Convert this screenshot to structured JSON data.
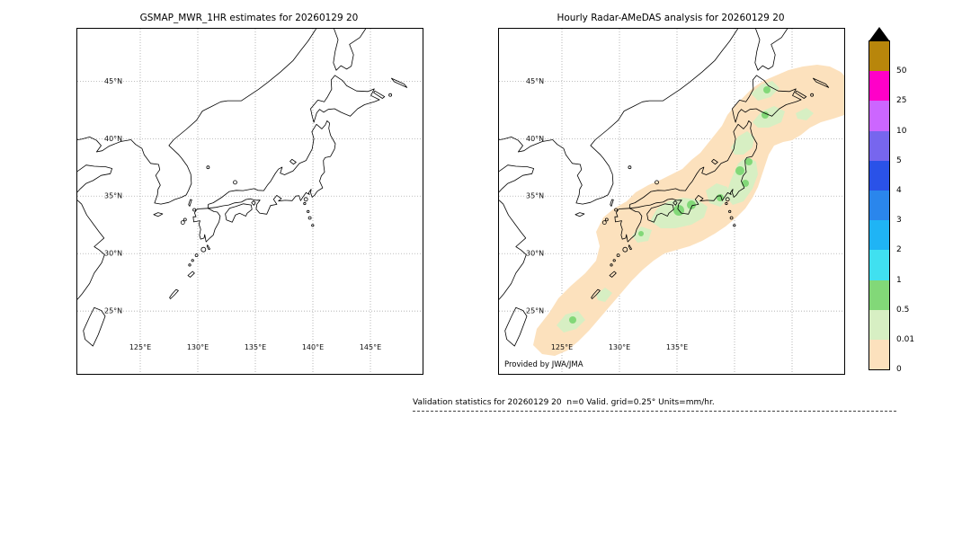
{
  "panels": {
    "left": {
      "title": "GSMAP_MWR_1HR estimates for 20260129 20",
      "lat_labels": [
        "45°N",
        "40°N",
        "35°N",
        "30°N",
        "25°N"
      ],
      "lon_labels": [
        "125°E",
        "130°E",
        "135°E",
        "140°E",
        "145°E"
      ]
    },
    "right": {
      "title": "Hourly Radar-AMeDAS analysis for 20260129 20",
      "lat_labels": [
        "45°N",
        "40°N",
        "35°N",
        "30°N",
        "25°N"
      ],
      "lon_labels": [
        "125°E",
        "130°E",
        "135°E"
      ],
      "credit": "Provided by JWA/JMA"
    }
  },
  "colorbar": {
    "arrow_color": "#000000",
    "blocks_top_to_bottom": [
      "#b8860b",
      "#ff00c8",
      "#cc66ff",
      "#7766ee",
      "#2a52e8",
      "#2a86ec",
      "#1fb4f5",
      "#40e0f0",
      "#82d878",
      "#d7efc3",
      "#fce1bd"
    ],
    "tick_labels": [
      "50",
      "25",
      "10",
      "5",
      "4",
      "3",
      "2",
      "1",
      "0.5",
      "0.01",
      "0"
    ]
  },
  "footer": {
    "text": "Validation statistics for 20260129 20  n=0 Valid. grid=0.25° Units=mm/hr."
  },
  "chart_data": {
    "type": "heatmap",
    "title_left": "GSMAP_MWR_1HR estimates for 20260129 20",
    "title_right": "Hourly Radar-AMeDAS analysis for 20260129 20",
    "map_extent": {
      "lon": [
        119.5,
        149.5
      ],
      "lat": [
        19.5,
        49.5
      ]
    },
    "x_ticks": [
      "125E",
      "130E",
      "135E",
      "140E",
      "145E"
    ],
    "y_ticks": [
      "45N",
      "40N",
      "35N",
      "30N",
      "25N"
    ],
    "grid": true,
    "units": "mm/hr",
    "colorbar_levels_low_to_high": [
      0,
      0.01,
      0.5,
      1,
      2,
      3,
      4,
      5,
      10,
      25,
      50
    ],
    "colorbar_colors_low_to_high": [
      "#fce1bd",
      "#d7efc3",
      "#82d878",
      "#40e0f0",
      "#1fb4f5",
      "#2a86ec",
      "#2a52e8",
      "#7766ee",
      "#cc66ff",
      "#ff00c8",
      "#b8860b"
    ],
    "panel_contents": [
      {
        "panel": "left",
        "precipitation": "none plotted (n=0, empty map)"
      },
      {
        "panel": "right",
        "precipitation": "SW-NE band of light rain (0-0.5 mm/hr, color #fce1bd/#d7efc3) from Okinawa along Kyushu, Shikoku, Honshu to Hokkaido, with embedded 0.5-1 mm/hr patches (#82d878) over western Japan, Kanto-Tohoku coast and southern Hokkaido"
      }
    ],
    "annotations": [
      "Provided by JWA/JMA",
      "Validation statistics for 20260129 20  n=0 Valid. grid=0.25° Units=mm/hr."
    ]
  }
}
